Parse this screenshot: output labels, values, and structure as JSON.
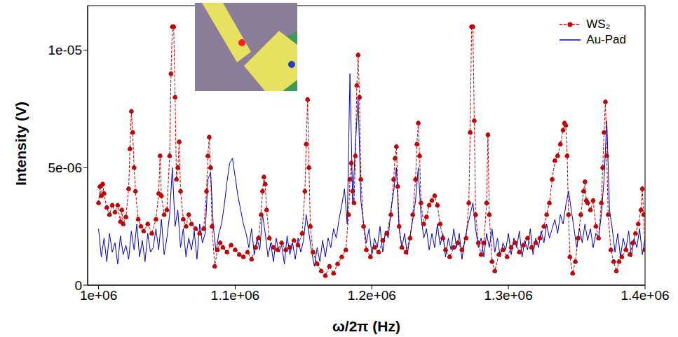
{
  "chart_data": {
    "type": "line",
    "x_label": "ω/2π (Hz)",
    "y_label": "Intensity (V)",
    "xlim": [
      992000,
      1400000
    ],
    "xticks": [
      {
        "value": 1000000,
        "label": "1e+06"
      },
      {
        "value": 1100000,
        "label": "1.1e+06"
      },
      {
        "value": 1200000,
        "label": "1.2e+06"
      },
      {
        "value": 1300000,
        "label": "1.3e+06"
      },
      {
        "value": 1400000,
        "label": "1.4e+06"
      }
    ],
    "ylim": [
      0,
      1.19e-05
    ],
    "yticks": [
      0,
      {
        "value": 5e-06,
        "label": "5e-06"
      },
      {
        "value": 1e-05,
        "label": "1e-05"
      }
    ],
    "grid": false,
    "legend": "upper right",
    "series": [
      {
        "name": "WS₂",
        "color": "#cc0000",
        "marker": "circle",
        "line_style": "dashed",
        "x": [
          1000000,
          1001000,
          1002000,
          1003000,
          1004000,
          1006000,
          1008000,
          1010000,
          1012000,
          1014000,
          1016000,
          1017000,
          1018000,
          1020000,
          1022000,
          1023000,
          1024000,
          1025000,
          1026000,
          1027000,
          1029000,
          1031000,
          1033000,
          1036000,
          1039000,
          1042000,
          1044000,
          1045000,
          1046000,
          1048000,
          1050000,
          1052000,
          1053000,
          1054000,
          1055000,
          1056000,
          1057000,
          1058000,
          1059000,
          1060000,
          1062000,
          1064000,
          1066000,
          1068000,
          1071000,
          1074000,
          1077000,
          1079000,
          1080000,
          1081000,
          1082000,
          1083000,
          1085000,
          1087000,
          1089000,
          1091000,
          1094000,
          1097000,
          1100000,
          1103000,
          1106000,
          1109000,
          1112000,
          1115000,
          1117000,
          1119000,
          1120000,
          1121000,
          1122000,
          1123000,
          1125000,
          1128000,
          1131000,
          1134000,
          1137000,
          1140000,
          1143000,
          1146000,
          1149000,
          1151000,
          1152000,
          1153000,
          1154000,
          1155000,
          1157000,
          1160000,
          1163000,
          1166000,
          1169000,
          1172000,
          1175000,
          1178000,
          1181000,
          1183000,
          1184000,
          1185000,
          1186000,
          1187000,
          1188000,
          1189000,
          1190000,
          1191000,
          1192000,
          1194000,
          1196000,
          1199000,
          1202000,
          1205000,
          1208000,
          1211000,
          1214000,
          1216000,
          1217000,
          1218000,
          1219000,
          1220000,
          1222000,
          1225000,
          1228000,
          1230000,
          1232000,
          1233000,
          1234000,
          1235000,
          1236000,
          1238000,
          1240000,
          1242000,
          1244000,
          1246000,
          1248000,
          1250000,
          1252000,
          1254000,
          1257000,
          1260000,
          1263000,
          1266000,
          1269000,
          1271000,
          1272000,
          1273000,
          1274000,
          1275000,
          1276000,
          1278000,
          1280000,
          1282000,
          1284000,
          1285000,
          1286000,
          1288000,
          1290000,
          1293000,
          1296000,
          1299000,
          1302000,
          1305000,
          1308000,
          1311000,
          1314000,
          1317000,
          1320000,
          1323000,
          1326000,
          1328000,
          1330000,
          1332000,
          1334000,
          1336000,
          1338000,
          1340000,
          1341000,
          1342000,
          1343000,
          1344000,
          1345000,
          1347000,
          1349000,
          1351000,
          1353000,
          1355000,
          1356000,
          1357000,
          1358000,
          1360000,
          1362000,
          1364000,
          1366000,
          1368000,
          1369000,
          1370000,
          1371000,
          1372000,
          1373000,
          1375000,
          1377000,
          1379000,
          1381000,
          1383000,
          1386000,
          1389000,
          1391000,
          1393000,
          1395000,
          1397000,
          1398000,
          1399000,
          1400000
        ],
        "values": [
          3.5e-06,
          4.2e-06,
          3.8e-06,
          4.3e-06,
          3.9e-06,
          3.3e-06,
          3e-06,
          3.4e-06,
          3.1e-06,
          3.4e-06,
          2.7e-06,
          3.2e-06,
          2.6e-06,
          2.9e-06,
          4.1e-06,
          5.8e-06,
          7.4e-06,
          6.5e-06,
          5e-06,
          4e-06,
          2.8e-06,
          2.5e-06,
          2.3e-06,
          2.6e-06,
          2.2e-06,
          2.8e-06,
          3.9e-06,
          5.5e-06,
          3.8e-06,
          3e-06,
          3.2e-06,
          5.5e-06,
          9e-06,
          1.1e-05,
          1.1e-05,
          8e-06,
          4.5e-06,
          5e-06,
          6.1e-06,
          4e-06,
          2.8e-06,
          2.5e-06,
          3e-06,
          2.6e-06,
          2.4e-06,
          2.2e-06,
          2.4e-06,
          4e-06,
          5.5e-06,
          6.3e-06,
          5e-06,
          2.5e-06,
          8e-07,
          1.5e-06,
          1.8e-06,
          1.6e-06,
          1.4e-06,
          1.7e-06,
          1.5e-06,
          1.3e-06,
          1.2e-06,
          1.4e-06,
          1.1e-06,
          1.6e-06,
          2e-06,
          3e-06,
          4e-06,
          4.6e-06,
          4.3e-06,
          3.2e-06,
          2e-06,
          1.6e-06,
          1.5e-06,
          1.8e-06,
          1.5e-06,
          1.6e-06,
          1.9e-06,
          1.7e-06,
          2.2e-06,
          4e-06,
          6e-06,
          7.9e-06,
          5e-06,
          2.5e-06,
          1.4e-06,
          9e-07,
          6e-07,
          4e-07,
          8e-07,
          5e-07,
          9e-07,
          1.2e-06,
          1.5e-06,
          3e-06,
          4.5e-06,
          5.2e-06,
          4e-06,
          3.5e-06,
          5.5e-06,
          8.5e-06,
          9.8e-06,
          8e-06,
          4.5e-06,
          2.5e-06,
          1.5e-06,
          1.2e-06,
          1.6e-06,
          1.4e-06,
          1.9e-06,
          2.2e-06,
          3e-06,
          4.5e-06,
          5.4e-06,
          5.9e-06,
          4.2e-06,
          2.5e-06,
          1.6e-06,
          1.4e-06,
          2e-06,
          3e-06,
          4.5e-06,
          6e-06,
          6.9e-06,
          5.5e-06,
          3.5e-06,
          2.6e-06,
          2.9e-06,
          3.4e-06,
          3.6e-06,
          3.8e-06,
          3.4e-06,
          2.6e-06,
          2e-06,
          1.5e-06,
          1.2e-06,
          1.6e-06,
          1.8e-06,
          1.5e-06,
          2e-06,
          3.5e-06,
          6.5e-06,
          1.1e-05,
          1.1e-05,
          7e-06,
          3e-06,
          1.8e-06,
          1.3e-06,
          1.8e-06,
          3.5e-06,
          6.4e-06,
          3e-06,
          1e-06,
          6e-07,
          1.3e-06,
          1.5e-06,
          1.2e-06,
          1.6e-06,
          1.8e-06,
          1.4e-06,
          1.7e-06,
          2e-06,
          1.6e-06,
          1.8e-06,
          2e-06,
          2.5e-06,
          3e-06,
          3.5e-06,
          4.5e-06,
          5.3e-06,
          5.5e-06,
          6e-06,
          6.6e-06,
          6.9e-06,
          6.8e-06,
          5.5e-06,
          3e-06,
          1.2e-06,
          5e-07,
          1e-06,
          2e-06,
          3e-06,
          4e-06,
          4.4e-06,
          3.6e-06,
          3.5e-06,
          3.2e-06,
          3.6e-06,
          2.5e-06,
          2e-06,
          3.5e-06,
          5e-06,
          6.5e-06,
          7.8e-06,
          5.5e-06,
          3e-06,
          1.5e-06,
          1e-06,
          6e-07,
          1e-06,
          1.2e-06,
          1.5e-06,
          1.3e-06,
          1.8e-06,
          2.2e-06,
          2.6e-06,
          3.2e-06,
          4.1e-06,
          3e-06,
          1.5e-06
        ]
      },
      {
        "name": "Au-Pad",
        "color": "#0000cc",
        "marker": "none",
        "line_style": "solid",
        "x": [
          1000000,
          1002000,
          1004000,
          1006000,
          1008000,
          1010000,
          1012000,
          1014000,
          1016000,
          1018000,
          1020000,
          1022000,
          1024000,
          1026000,
          1028000,
          1030000,
          1032000,
          1034000,
          1036000,
          1038000,
          1040000,
          1042000,
          1044000,
          1046000,
          1048000,
          1050000,
          1052000,
          1054000,
          1056000,
          1058000,
          1060000,
          1062000,
          1064000,
          1066000,
          1068000,
          1070000,
          1072000,
          1074000,
          1076000,
          1078000,
          1080000,
          1082000,
          1084000,
          1086000,
          1088000,
          1090000,
          1092000,
          1094000,
          1096000,
          1098000,
          1100000,
          1102000,
          1104000,
          1106000,
          1108000,
          1110000,
          1112000,
          1114000,
          1116000,
          1118000,
          1120000,
          1122000,
          1124000,
          1126000,
          1128000,
          1130000,
          1132000,
          1134000,
          1136000,
          1138000,
          1140000,
          1142000,
          1144000,
          1146000,
          1148000,
          1150000,
          1152000,
          1154000,
          1156000,
          1158000,
          1160000,
          1162000,
          1164000,
          1166000,
          1168000,
          1170000,
          1172000,
          1174000,
          1176000,
          1178000,
          1180000,
          1182000,
          1184000,
          1186000,
          1188000,
          1190000,
          1192000,
          1194000,
          1196000,
          1198000,
          1200000,
          1202000,
          1204000,
          1206000,
          1208000,
          1210000,
          1212000,
          1214000,
          1216000,
          1218000,
          1220000,
          1222000,
          1224000,
          1226000,
          1228000,
          1230000,
          1232000,
          1234000,
          1236000,
          1238000,
          1240000,
          1242000,
          1244000,
          1246000,
          1248000,
          1250000,
          1252000,
          1254000,
          1256000,
          1258000,
          1260000,
          1262000,
          1264000,
          1266000,
          1268000,
          1270000,
          1272000,
          1274000,
          1276000,
          1278000,
          1280000,
          1282000,
          1284000,
          1286000,
          1288000,
          1290000,
          1292000,
          1294000,
          1296000,
          1298000,
          1300000,
          1302000,
          1304000,
          1306000,
          1308000,
          1310000,
          1312000,
          1314000,
          1316000,
          1318000,
          1320000,
          1322000,
          1324000,
          1326000,
          1328000,
          1330000,
          1332000,
          1334000,
          1336000,
          1338000,
          1340000,
          1342000,
          1344000,
          1346000,
          1348000,
          1350000,
          1352000,
          1354000,
          1356000,
          1358000,
          1360000,
          1362000,
          1364000,
          1366000,
          1368000,
          1370000,
          1372000,
          1374000,
          1376000,
          1378000,
          1380000,
          1382000,
          1384000,
          1386000,
          1388000,
          1390000,
          1392000,
          1394000,
          1396000,
          1398000,
          1400000
        ],
        "values": [
          2.4e-06,
          1.2e-06,
          2e-06,
          1e-06,
          2.2e-06,
          1.4e-06,
          1.8e-06,
          9e-07,
          2.1e-06,
          1.3e-06,
          1.7e-06,
          1.1e-06,
          2.3e-06,
          1.5e-06,
          2.6e-06,
          1.2e-06,
          1.9e-06,
          1e-06,
          2.2e-06,
          1.4e-06,
          1.6e-06,
          2.4e-06,
          1.5e-06,
          2.8e-06,
          1.3e-06,
          2e-06,
          3e-06,
          5e-06,
          2.5e-06,
          3.2e-06,
          1.6e-06,
          2.4e-06,
          1.2e-06,
          2e-06,
          1.5e-06,
          2.3e-06,
          1.1e-06,
          2.6e-06,
          1.8e-06,
          2.2e-06,
          4.5e-06,
          4.8e-06,
          2.5e-06,
          1.4e-06,
          2.2e-06,
          2.6e-06,
          3.4e-06,
          4.4e-06,
          5.2e-06,
          5.4e-06,
          4.6e-06,
          3.8e-06,
          3.2e-06,
          2.6e-06,
          2.2e-06,
          1.6e-06,
          2.4e-06,
          1.3e-06,
          2e-06,
          1.5e-06,
          3e-06,
          2.2e-06,
          1.2e-06,
          1.8e-06,
          1e-06,
          2e-06,
          1.4e-06,
          1.7e-06,
          9e-07,
          2.1e-06,
          1.3e-06,
          1.8e-06,
          1.1e-06,
          2e-06,
          1.4e-06,
          1.9e-06,
          3e-06,
          2.2e-06,
          1.4e-06,
          8e-07,
          1.6e-06,
          1e-06,
          1.9e-06,
          1.2e-06,
          2e-06,
          1.6e-06,
          2.4e-06,
          2e-06,
          2.8e-06,
          3.4e-06,
          4.1e-06,
          2.6e-06,
          9e-06,
          3.5e-06,
          6e-06,
          8e-06,
          3.6e-06,
          2.6e-06,
          1.8e-06,
          2.4e-06,
          1.3e-06,
          2e-06,
          1.6e-06,
          2.5e-06,
          1.4e-06,
          2.3e-06,
          2e-06,
          3.2e-06,
          4e-06,
          5e-06,
          2.4e-06,
          1.6e-06,
          2.2e-06,
          1.3e-06,
          2.1e-06,
          2.8e-06,
          3.6e-06,
          5e-06,
          3e-06,
          2e-06,
          2.4e-06,
          1.5e-06,
          2.2e-06,
          1.6e-06,
          2.6e-06,
          1.7e-06,
          2.2e-06,
          1.2e-06,
          2e-06,
          1.5e-06,
          2.4e-06,
          1.6e-06,
          2.2e-06,
          1.1e-06,
          1.9e-06,
          2.5e-06,
          3e-06,
          3.5e-06,
          2.4e-06,
          1.6e-06,
          2e-06,
          1.2e-06,
          2.2e-06,
          1.6e-06,
          2.4e-06,
          1.4e-06,
          2e-06,
          1.2e-06,
          1.8e-06,
          1.5e-06,
          2.2e-06,
          1.3e-06,
          2e-06,
          1.6e-06,
          2.3e-06,
          1.2e-06,
          1.9e-06,
          1.5e-06,
          2.4e-06,
          1.3e-06,
          2e-06,
          1.6e-06,
          2.3e-06,
          1.8e-06,
          2.6e-06,
          2e-06,
          2.4e-06,
          2.8e-06,
          2.2e-06,
          3e-06,
          2.6e-06,
          3.4e-06,
          4e-06,
          3.2e-06,
          2.4e-06,
          1.6e-06,
          2.4e-06,
          1.8e-06,
          2.6e-06,
          1.9e-06,
          2.4e-06,
          1.6e-06,
          2.2e-06,
          2e-06,
          3e-06,
          4.5e-06,
          7e-06,
          3.2e-06,
          2.4e-06,
          1.4e-06,
          2.2e-06,
          1.2e-06,
          2e-06,
          1.5e-06,
          2.3e-06,
          1.2e-06,
          2e-06,
          1.6e-06,
          2.4e-06,
          1.3e-06,
          2e-06
        ]
      }
    ]
  }
}
